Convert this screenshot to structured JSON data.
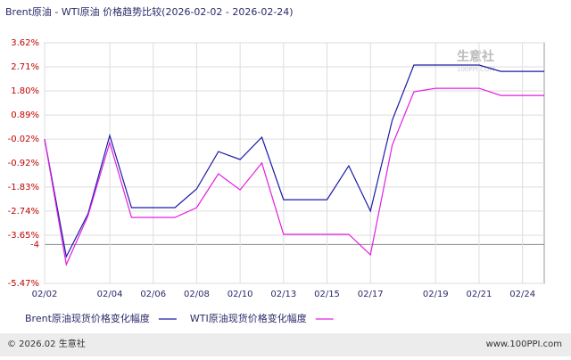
{
  "chart_data": {
    "type": "line",
    "title": "Brent原油 - WTI原油 价格趋势比较(2026-02-02 - 2026-02-24)",
    "categories": [
      "02/02",
      null,
      null,
      "02/04",
      null,
      "02/06",
      null,
      "02/08",
      null,
      "02/10",
      null,
      "02/13",
      null,
      "02/15",
      null,
      "02/17",
      null,
      null,
      "02/19",
      null,
      "02/21",
      null,
      "02/24",
      null
    ],
    "series": [
      {
        "name": "Brent原油现货价格变化幅度",
        "color": "#1a1aa8",
        "values": [
          -0.02,
          -4.46,
          -2.84,
          0.12,
          -2.61,
          -2.61,
          -2.61,
          -1.9,
          -0.49,
          -0.79,
          0.05,
          -2.31,
          -2.31,
          -2.31,
          -1.03,
          -2.74,
          0.69,
          2.78,
          2.78,
          2.78,
          2.78,
          2.54,
          2.54,
          2.54
        ]
      },
      {
        "name": "WTI原油现货价格变化幅度",
        "color": "#e020e0",
        "values": [
          -0.02,
          -4.76,
          -2.91,
          -0.15,
          -2.98,
          -2.98,
          -2.98,
          -2.61,
          -1.33,
          -1.94,
          -0.92,
          -3.62,
          -3.62,
          -3.62,
          -3.62,
          -4.39,
          -0.25,
          1.77,
          1.9,
          1.9,
          1.9,
          1.63,
          1.63,
          1.63
        ]
      }
    ],
    "ylim": [
      -5.47,
      3.62
    ],
    "yticks": [
      {
        "value": 3.62,
        "label": "3.62%"
      },
      {
        "value": 2.71,
        "label": "2.71%"
      },
      {
        "value": 1.8,
        "label": "1.80%"
      },
      {
        "value": 0.89,
        "label": "0.89%"
      },
      {
        "value": -0.02,
        "label": "-0.02%"
      },
      {
        "value": -0.92,
        "label": "-0.92%"
      },
      {
        "value": -1.83,
        "label": "-1.83%"
      },
      {
        "value": -2.74,
        "label": "-2.74%"
      },
      {
        "value": -3.65,
        "label": "-3.65%"
      },
      -4,
      {
        "value": -5.47,
        "label": "-5.47%"
      }
    ],
    "grid": true,
    "watermark": {
      "name": "生意社",
      "site": "100PPI.COM"
    }
  },
  "footer": {
    "left": "© 2026.02 生意社",
    "right": "www.100PPI.com"
  }
}
